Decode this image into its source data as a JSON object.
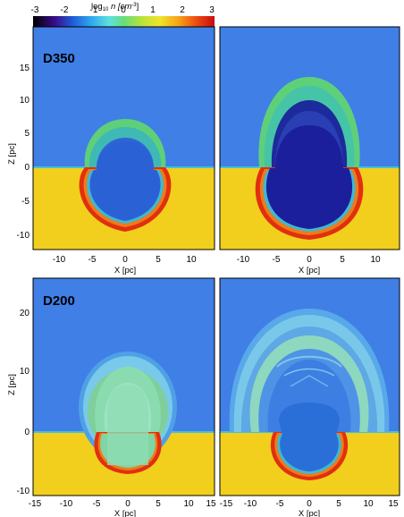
{
  "colorbar": {
    "label_prefix": "log",
    "label_sub": "10",
    "label_main": " n [cm",
    "label_exp": "-3",
    "label_end": "]",
    "ticks": [
      "-3",
      "-2",
      "-1",
      "0",
      "1",
      "2",
      "3"
    ]
  },
  "panels": {
    "top_left": {
      "label": "D350"
    },
    "bottom_left": {
      "label": "D200"
    }
  },
  "axes": {
    "z_label": "Z [pc]",
    "x_label": "X [pc]",
    "top_x_ticks": [
      "-10",
      "-5",
      "0",
      "5",
      "10"
    ],
    "top_z_ticks": [
      "15",
      "10",
      "5",
      "0",
      "-5",
      "-10"
    ],
    "bottom_x_ticks": [
      "-15",
      "-10",
      "-5",
      "0",
      "5",
      "10",
      "15"
    ],
    "bottom_z_ticks": [
      "20",
      "10",
      "0",
      "-10"
    ]
  },
  "colors": {
    "upper_medium": "#3f7fe6",
    "lower_medium": "#f2cf1c",
    "shell_outer": "#e03010",
    "shell_inner": "#40b8d0",
    "cavity_top": "#2f5fd8",
    "cavity_top2": "#1c1f9c",
    "cavity_bottom": "#2a6fd8",
    "bubble_green": "#7ed27a"
  }
}
